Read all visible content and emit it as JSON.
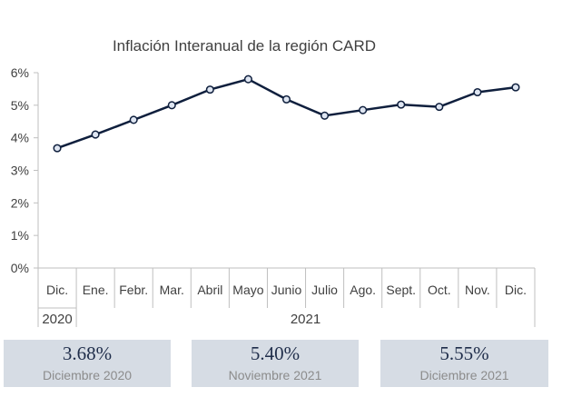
{
  "chart_data": {
    "type": "line",
    "title": "Inflación Interanual de la región CARD",
    "categories": [
      "Dic.",
      "Ene.",
      "Febr.",
      "Mar.",
      "Abril",
      "Mayo",
      "Junio",
      "Julio",
      "Ago.",
      "Sept.",
      "Oct.",
      "Nov.",
      "Dic."
    ],
    "year_groups": [
      {
        "label": "2020",
        "span": 1
      },
      {
        "label": "2021",
        "span": 12
      }
    ],
    "series": [
      {
        "values": [
          3.68,
          4.1,
          4.55,
          5.0,
          5.48,
          5.8,
          5.18,
          4.68,
          4.85,
          5.02,
          4.95,
          5.4,
          5.55
        ]
      }
    ],
    "y_ticks": [
      "0%",
      "1%",
      "2%",
      "3%",
      "4%",
      "5%",
      "6%"
    ],
    "ylim": [
      0,
      6
    ],
    "xlabel": "",
    "ylabel": "",
    "grid": false,
    "colors": {
      "line": "#0f1f3d",
      "marker_fill": "#dfe6f2",
      "card_bg": "#d6dce4",
      "card_value": "#1f2d4a"
    }
  },
  "cards": [
    {
      "value": "3.68%",
      "label": "Diciembre 2020"
    },
    {
      "value": "5.40%",
      "label": "Noviembre 2021"
    },
    {
      "value": "5.55%",
      "label": "Diciembre 2021"
    }
  ]
}
